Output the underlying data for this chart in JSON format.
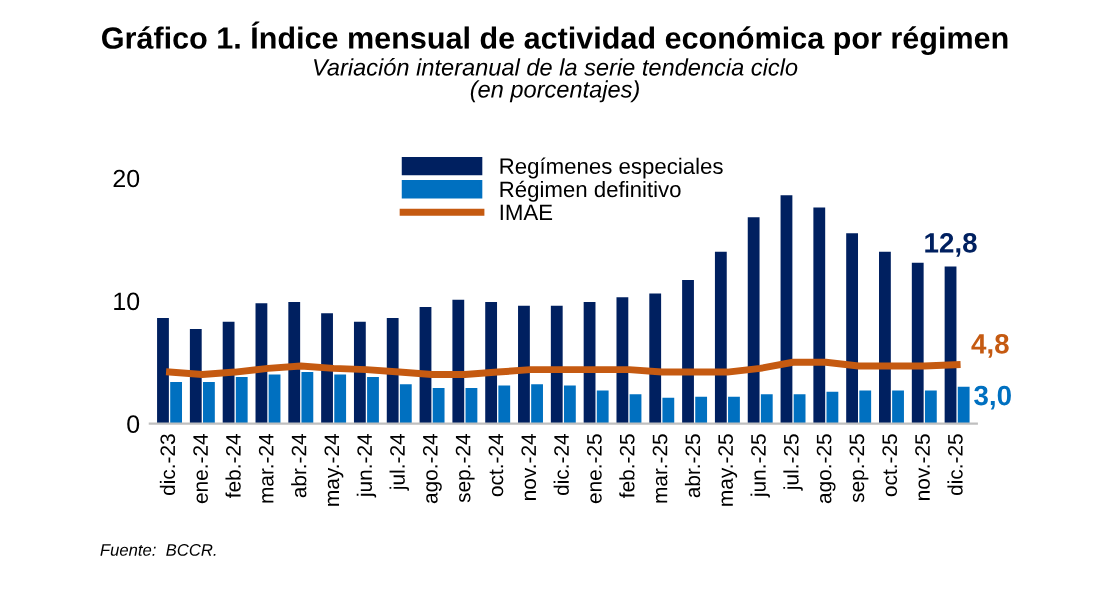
{
  "chart_data": {
    "type": "bar",
    "title": "Gráfico 1. Índice mensual de actividad económica por régimen",
    "subtitle": "Variación interanual de la serie tendencia ciclo\n(en porcentajes)",
    "categories": [
      "dic.-23",
      "ene.-24",
      "feb.-24",
      "mar.-24",
      "abr.-24",
      "may.-24",
      "jun.-24",
      "jul.-24",
      "ago.-24",
      "sep.-24",
      "oct.-24",
      "nov.-24",
      "dic.-24",
      "ene.-25",
      "feb.-25",
      "mar.-25",
      "abr.-25",
      "may.-25",
      "jun.-25",
      "jul.-25",
      "ago.-25",
      "sep.-25",
      "oct.-25",
      "nov.-25",
      "dic.-25"
    ],
    "series": [
      {
        "name": "Regímenes especiales",
        "color": "#002060",
        "values": [
          8.6,
          7.7,
          8.3,
          9.8,
          9.9,
          9.0,
          8.3,
          8.6,
          9.5,
          10.1,
          9.9,
          9.6,
          9.6,
          9.9,
          10.3,
          10.6,
          11.7,
          14.0,
          16.8,
          18.6,
          17.6,
          15.5,
          14.0,
          13.1,
          12.8
        ],
        "value_labels": [
          null,
          null,
          null,
          null,
          null,
          null,
          null,
          null,
          null,
          null,
          null,
          null,
          null,
          null,
          null,
          null,
          null,
          null,
          null,
          null,
          null,
          null,
          null,
          null,
          "12,8"
        ]
      },
      {
        "name": "Régimen definitivo",
        "color": "#0070c0",
        "values": [
          3.4,
          3.4,
          3.8,
          4.0,
          4.2,
          4.0,
          3.8,
          3.2,
          2.9,
          2.9,
          3.1,
          3.2,
          3.1,
          2.7,
          2.4,
          2.1,
          2.2,
          2.2,
          2.4,
          2.4,
          2.6,
          2.7,
          2.7,
          2.7,
          3.0
        ],
        "value_labels": [
          null,
          null,
          null,
          null,
          null,
          null,
          null,
          null,
          null,
          null,
          null,
          null,
          null,
          null,
          null,
          null,
          null,
          null,
          null,
          null,
          null,
          null,
          null,
          null,
          "3,0"
        ]
      },
      {
        "name": "IMAE",
        "type": "line",
        "color": "#c55a11",
        "values": [
          4.2,
          4.0,
          4.2,
          4.5,
          4.7,
          4.5,
          4.4,
          4.2,
          4.0,
          4.0,
          4.2,
          4.4,
          4.4,
          4.4,
          4.4,
          4.2,
          4.2,
          4.2,
          4.5,
          5.0,
          5.0,
          4.7,
          4.7,
          4.7,
          4.8
        ],
        "value_labels": [
          null,
          null,
          null,
          null,
          null,
          null,
          null,
          null,
          null,
          null,
          null,
          null,
          null,
          null,
          null,
          null,
          null,
          null,
          null,
          null,
          null,
          null,
          null,
          null,
          "4,8"
        ]
      }
    ],
    "ylim": [
      0,
      20
    ],
    "yticks": [
      0,
      10,
      20
    ],
    "grid": false,
    "legend": "top",
    "annotations": [
      "Fuente:  BCCR."
    ]
  }
}
